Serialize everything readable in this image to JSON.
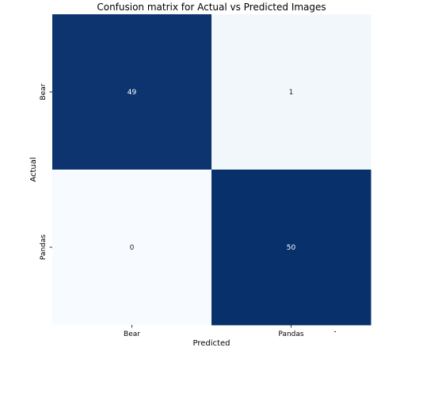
{
  "chart_data": {
    "type": "heatmap",
    "title": "Confusion matrix for Actual vs Predicted Images",
    "xlabel": "Predicted",
    "ylabel": "Actual",
    "x_categories": [
      "Bear",
      "Pandas"
    ],
    "y_categories": [
      "Bear",
      "Pandas"
    ],
    "values": [
      [
        49,
        1
      ],
      [
        0,
        50
      ]
    ],
    "annotations": [
      [
        "49",
        "1"
      ],
      [
        "0",
        "50"
      ]
    ],
    "colormap": "Blues",
    "color_range": [
      0,
      50
    ],
    "color_low": "#f7fbff",
    "color_high": "#08306b",
    "annotation_color_dark_cell": "#ffffff",
    "annotation_color_light_cell": "#262626",
    "colorbar": false,
    "grid": false,
    "legend": "none"
  }
}
